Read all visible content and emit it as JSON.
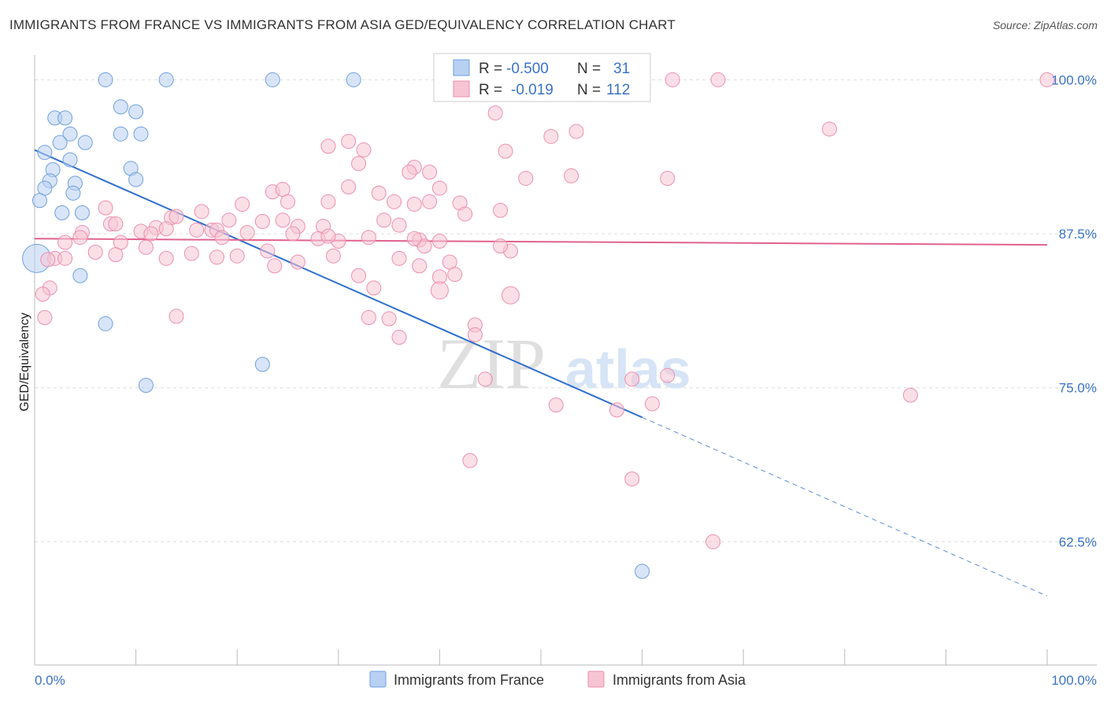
{
  "chart_data": {
    "type": "scatter",
    "title": "IMMIGRANTS FROM FRANCE VS IMMIGRANTS FROM ASIA GED/EQUIVALENCY CORRELATION CHART",
    "source": "Source: ZipAtlas.com",
    "ylabel": "GED/Equivalency",
    "xlim": [
      0,
      100
    ],
    "ylim": [
      52.5,
      102
    ],
    "y_ticks": [
      {
        "value": 100,
        "label": "100.0%"
      },
      {
        "value": 87.5,
        "label": "87.5%"
      },
      {
        "value": 75,
        "label": "75.0%"
      },
      {
        "value": 62.5,
        "label": "62.5%"
      }
    ],
    "x_tick_labels": {
      "left": "0.0%",
      "right": "100.0%"
    },
    "grid": true,
    "watermark": {
      "zip": "ZIP",
      "atlas": "atlas"
    },
    "stats": [
      {
        "r_label": "R =",
        "r": "-0.500",
        "n_label": "N =",
        "n": "31"
      },
      {
        "r_label": "R =",
        "r": "-0.019",
        "n_label": "N =",
        "n": "112"
      }
    ],
    "series": [
      {
        "name": "Immigrants from France",
        "color": "#6fa0e0",
        "fill": "#b8d0f2",
        "line_color": "#2f6fd0",
        "trend": {
          "x0": 0,
          "y0": 94.3,
          "x1": 60,
          "y1": 72.6,
          "x_dash_end": 100,
          "y_dash_end": 58.1
        },
        "points": [
          [
            7,
            100
          ],
          [
            13,
            100
          ],
          [
            23.5,
            100
          ],
          [
            31.5,
            100
          ],
          [
            8.5,
            97.8
          ],
          [
            10,
            97.4
          ],
          [
            2,
            96.9
          ],
          [
            3,
            96.9
          ],
          [
            3.5,
            95.6
          ],
          [
            8.5,
            95.6
          ],
          [
            10.5,
            95.6
          ],
          [
            2.5,
            94.9
          ],
          [
            5,
            94.9
          ],
          [
            1,
            94.1
          ],
          [
            3.5,
            93.5
          ],
          [
            1.8,
            92.7
          ],
          [
            9.5,
            92.8
          ],
          [
            10,
            91.9
          ],
          [
            1.5,
            91.8
          ],
          [
            4,
            91.6
          ],
          [
            1,
            91.2
          ],
          [
            3.8,
            90.8
          ],
          [
            0.5,
            90.2
          ],
          [
            2.7,
            89.2
          ],
          [
            4.7,
            89.2
          ],
          [
            0.2,
            85.5
          ],
          [
            4.5,
            84.1
          ],
          [
            7,
            80.2
          ],
          [
            22.5,
            76.9
          ],
          [
            11,
            75.2
          ],
          [
            60,
            60.1
          ]
        ],
        "sizes": [
          9,
          9,
          9,
          9,
          9,
          9,
          9,
          9,
          9,
          9,
          9,
          9,
          9,
          9,
          9,
          9,
          9,
          9,
          9,
          9,
          9,
          9,
          9,
          9,
          9,
          18,
          9,
          9,
          9,
          9,
          9
        ]
      },
      {
        "name": "Immigrants from Asia",
        "color": "#ec8fae",
        "fill": "#f7c4d4",
        "line_color": "#e0628f",
        "trend": {
          "x0": 0,
          "y0": 87.1,
          "x1": 100,
          "y1": 86.6
        },
        "points": [
          [
            63,
            100
          ],
          [
            67.5,
            100
          ],
          [
            100,
            100
          ],
          [
            50,
            98.8
          ],
          [
            45.5,
            97.3
          ],
          [
            78.5,
            96
          ],
          [
            53.5,
            95.8
          ],
          [
            51,
            95.4
          ],
          [
            29,
            94.6
          ],
          [
            46.5,
            94.2
          ],
          [
            32,
            93.2
          ],
          [
            37.5,
            92.9
          ],
          [
            37,
            92.5
          ],
          [
            39,
            92.5
          ],
          [
            53,
            92.2
          ],
          [
            48.5,
            92
          ],
          [
            62.5,
            92
          ],
          [
            31,
            91.3
          ],
          [
            23.5,
            90.9
          ],
          [
            24.5,
            91.1
          ],
          [
            34,
            90.8
          ],
          [
            40,
            91.2
          ],
          [
            20.5,
            89.9
          ],
          [
            25,
            90.1
          ],
          [
            29,
            90.1
          ],
          [
            35.5,
            90.1
          ],
          [
            37.5,
            89.9
          ],
          [
            42,
            90
          ],
          [
            7,
            89.6
          ],
          [
            16.5,
            89.3
          ],
          [
            42.5,
            89.1
          ],
          [
            46,
            89.4
          ],
          [
            13.5,
            88.8
          ],
          [
            14,
            88.9
          ],
          [
            19.2,
            88.6
          ],
          [
            22.5,
            88.5
          ],
          [
            24.5,
            88.6
          ],
          [
            26,
            88.1
          ],
          [
            28.5,
            88.1
          ],
          [
            34.5,
            88.6
          ],
          [
            36,
            88.2
          ],
          [
            17.5,
            87.8
          ],
          [
            7.5,
            88.3
          ],
          [
            8,
            88.3
          ],
          [
            16,
            87.8
          ],
          [
            10.5,
            87.7
          ],
          [
            12,
            88
          ],
          [
            13,
            87.9
          ],
          [
            18,
            87.8
          ],
          [
            21,
            87.6
          ],
          [
            25.5,
            87.5
          ],
          [
            11.5,
            87.5
          ],
          [
            4.7,
            87.6
          ],
          [
            4.5,
            87.2
          ],
          [
            18.5,
            87.2
          ],
          [
            28,
            87.1
          ],
          [
            33,
            87.2
          ],
          [
            38,
            87
          ],
          [
            3,
            86.8
          ],
          [
            8.5,
            86.8
          ],
          [
            11,
            86.4
          ],
          [
            30,
            86.9
          ],
          [
            38.5,
            86.5
          ],
          [
            40,
            86.9
          ],
          [
            47,
            86.1
          ],
          [
            46,
            86.5
          ],
          [
            23,
            86.1
          ],
          [
            6,
            86
          ],
          [
            15.5,
            85.9
          ],
          [
            8,
            85.8
          ],
          [
            13,
            85.5
          ],
          [
            20,
            85.7
          ],
          [
            2,
            85.5
          ],
          [
            3,
            85.5
          ],
          [
            18,
            85.6
          ],
          [
            1.3,
            85.4
          ],
          [
            26,
            85.2
          ],
          [
            36,
            85.5
          ],
          [
            41,
            85.2
          ],
          [
            38,
            84.9
          ],
          [
            32,
            84.1
          ],
          [
            40,
            84
          ],
          [
            33.5,
            83.1
          ],
          [
            40,
            82.9
          ],
          [
            47,
            82.5
          ],
          [
            1.5,
            83.1
          ],
          [
            0.8,
            82.6
          ],
          [
            14,
            80.8
          ],
          [
            33,
            80.7
          ],
          [
            35,
            80.6
          ],
          [
            43.5,
            80.1
          ],
          [
            43.5,
            79.3
          ],
          [
            36,
            79.1
          ],
          [
            62.5,
            76
          ],
          [
            44.5,
            75.7
          ],
          [
            1,
            80.7
          ],
          [
            59,
            75.7
          ],
          [
            51.5,
            73.6
          ],
          [
            57.5,
            73.2
          ],
          [
            61,
            73.7
          ],
          [
            86.5,
            74.4
          ],
          [
            43,
            69.1
          ],
          [
            59,
            67.6
          ],
          [
            67,
            62.5
          ],
          [
            31,
            95
          ],
          [
            37.5,
            87.1
          ],
          [
            32.5,
            94.3
          ],
          [
            41.5,
            84.2
          ],
          [
            29.5,
            85.7
          ],
          [
            29,
            87.3
          ],
          [
            23.7,
            84.9
          ],
          [
            39,
            90.1
          ]
        ],
        "sizes": [
          9,
          9,
          9,
          9,
          9,
          9,
          9,
          9,
          9,
          9,
          9,
          9,
          9,
          9,
          9,
          9,
          9,
          9,
          9,
          9,
          9,
          9,
          9,
          9,
          9,
          9,
          9,
          9,
          9,
          9,
          9,
          9,
          9,
          9,
          9,
          9,
          9,
          9,
          9,
          9,
          9,
          9,
          9,
          9,
          9,
          9,
          9,
          9,
          9,
          9,
          9,
          9,
          9,
          9,
          9,
          9,
          9,
          9,
          9,
          9,
          9,
          9,
          9,
          9,
          9,
          9,
          9,
          9,
          9,
          9,
          9,
          9,
          9,
          9,
          9,
          9,
          9,
          9,
          9,
          9,
          9,
          9,
          9,
          11,
          11,
          9,
          9,
          9,
          9,
          9,
          9,
          9,
          9,
          9,
          9,
          9,
          9,
          9,
          9,
          9,
          9,
          9,
          9,
          9,
          9,
          9,
          9,
          9,
          9,
          9,
          9,
          9
        ]
      }
    ]
  }
}
